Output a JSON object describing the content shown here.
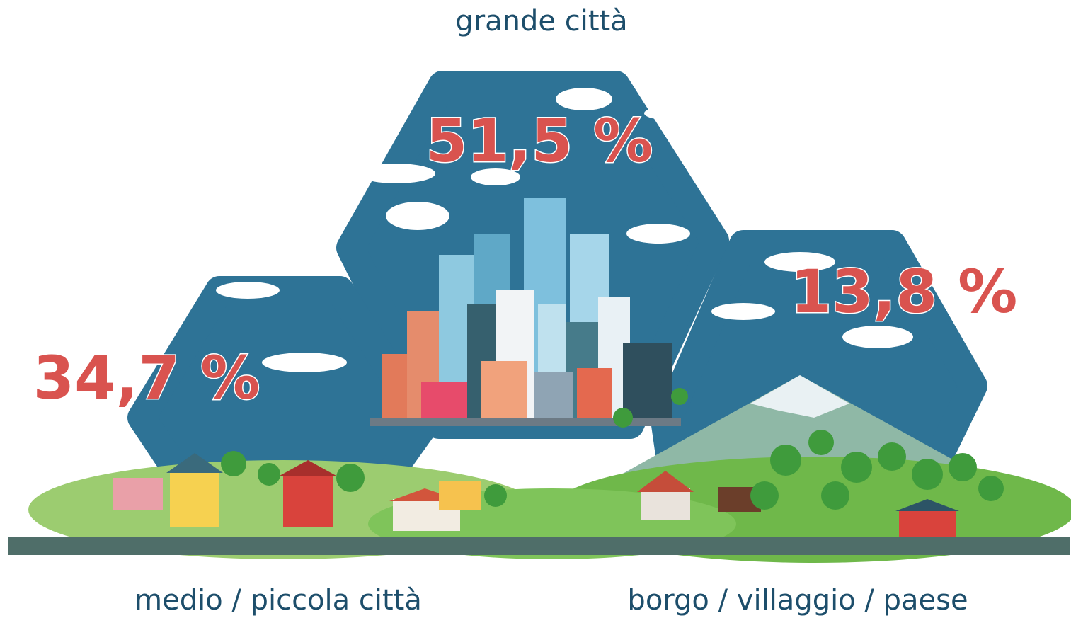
{
  "title": "grande città",
  "panels": [
    {
      "label": "grande città",
      "share": "51,5 %"
    },
    {
      "label": "medio / piccola città",
      "share": "34,7 %"
    },
    {
      "label": "borgo / villaggio / paese",
      "share": "13,8 %"
    }
  ]
}
